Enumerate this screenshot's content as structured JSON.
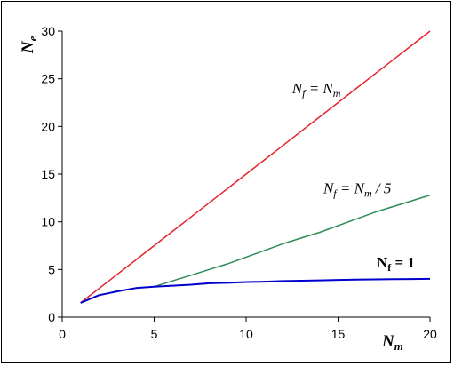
{
  "chart_data": {
    "type": "line",
    "xlabel": "N",
    "xlabel_sub": "m",
    "ylabel": "N",
    "ylabel_sub": "e",
    "xlim": [
      0,
      20
    ],
    "ylim": [
      0,
      30
    ],
    "xticks": [
      0,
      5,
      10,
      15,
      20
    ],
    "yticks": [
      0,
      5,
      10,
      15,
      20,
      25,
      30
    ],
    "grid": false,
    "legend": "none",
    "series": [
      {
        "name": "Nf = Nm",
        "color": "#e8242a",
        "x": [
          1,
          2,
          3,
          4,
          5,
          6,
          7,
          8,
          9,
          10,
          11,
          12,
          13,
          14,
          15,
          16,
          17,
          18,
          19,
          20
        ],
        "y": [
          1.5,
          3,
          4.5,
          6,
          7.5,
          9,
          10.5,
          12,
          13.5,
          15,
          16.5,
          18,
          19.5,
          21,
          22.5,
          24,
          25.5,
          27,
          28.5,
          30
        ]
      },
      {
        "name": "Nf = Nm / 5",
        "color": "#2e8b57",
        "x": [
          5,
          6,
          7,
          8,
          9,
          10,
          11,
          12,
          13,
          14,
          15,
          16,
          17,
          18,
          19,
          20
        ],
        "y": [
          3.2,
          3.8,
          4.4,
          5.0,
          5.6,
          6.3,
          7.0,
          7.7,
          8.3,
          8.9,
          9.6,
          10.3,
          11.0,
          11.6,
          12.2,
          12.8
        ]
      },
      {
        "name": "Nf = 1",
        "color": "#0000cc",
        "x": [
          1,
          2,
          3,
          4,
          5,
          6,
          7,
          8,
          9,
          10,
          11,
          12,
          13,
          14,
          15,
          16,
          17,
          18,
          19,
          20
        ],
        "y": [
          1.5,
          2.3,
          2.7,
          3.05,
          3.2,
          3.3,
          3.4,
          3.55,
          3.6,
          3.68,
          3.72,
          3.78,
          3.82,
          3.86,
          3.9,
          3.93,
          3.96,
          3.98,
          4.0,
          4.02
        ]
      }
    ],
    "annotations": [
      {
        "main": "N",
        "sub": "f",
        "rest": " = N",
        "sub2": "m",
        "tail": "",
        "x": 12.5,
        "y": 23.5,
        "bold": false
      },
      {
        "main": "N",
        "sub": "f",
        "rest": " = N",
        "sub2": "m",
        "tail": " / 5",
        "x": 14.2,
        "y": 13.0,
        "bold": false
      },
      {
        "main": "N",
        "sub": "f",
        "rest": " = 1",
        "sub2": "",
        "tail": "",
        "x": 17.1,
        "y": 5.2,
        "bold": true
      }
    ]
  }
}
